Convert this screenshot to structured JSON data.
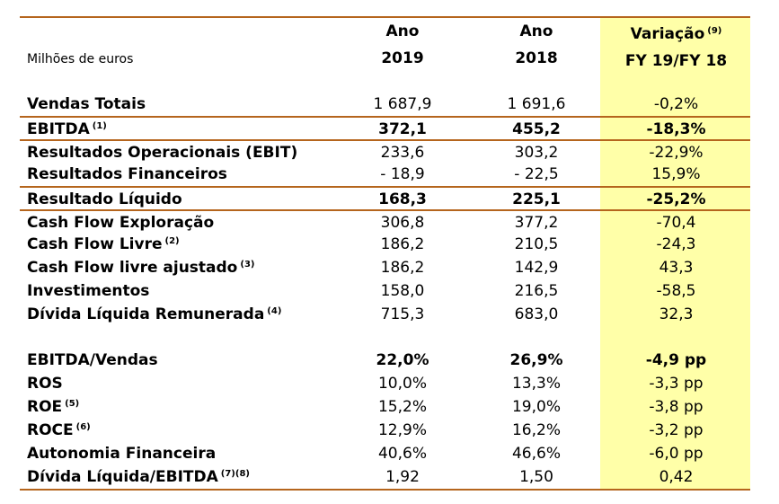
{
  "header": {
    "unit_label": "Milhões de euros",
    "col1_line1": "Ano",
    "col1_line2": "2019",
    "col2_line1": "Ano",
    "col2_line2": "2018",
    "col3_line1": "Variação",
    "col3_note": "(9)",
    "col3_line2": "FY 19/FY 18"
  },
  "rows": [
    {
      "label": "Vendas Totais",
      "note": "",
      "y2019": "1 687,9",
      "y2018": "1 691,6",
      "var": "-0,2%"
    },
    {
      "label": "EBITDA",
      "note": "(1)",
      "y2019": "372,1",
      "y2018": "455,2",
      "var": "-18,3%"
    },
    {
      "label": "Resultados Operacionais (EBIT)",
      "note": "",
      "y2019": "233,6",
      "y2018": "303,2",
      "var": "-22,9%"
    },
    {
      "label": "Resultados Financeiros",
      "note": "",
      "y2019": "- 18,9",
      "y2018": "- 22,5",
      "var": "15,9%"
    },
    {
      "label": "Resultado Líquido",
      "note": "",
      "y2019": "168,3",
      "y2018": "225,1",
      "var": "-25,2%"
    },
    {
      "label": "Cash Flow Exploração",
      "note": "",
      "y2019": "306,8",
      "y2018": "377,2",
      "var": "-70,4"
    },
    {
      "label": "Cash Flow Livre",
      "note": "(2)",
      "y2019": "186,2",
      "y2018": "210,5",
      "var": "-24,3"
    },
    {
      "label": "Cash Flow livre ajustado",
      "note": "(3)",
      "y2019": "186,2",
      "y2018": "142,9",
      "var": "43,3"
    },
    {
      "label": "Investimentos",
      "note": "",
      "y2019": "158,0",
      "y2018": "216,5",
      "var": "-58,5"
    },
    {
      "label": "Dívida Líquida Remunerada",
      "note": "(4)",
      "y2019": "715,3",
      "y2018": "683,0",
      "var": "32,3"
    },
    {
      "label": "EBITDA/Vendas",
      "note": "",
      "y2019": "22,0%",
      "y2018": "26,9%",
      "var": "-4,9 pp"
    },
    {
      "label": "ROS",
      "note": "",
      "y2019": "10,0%",
      "y2018": "13,3%",
      "var": "-3,3 pp"
    },
    {
      "label": "ROE",
      "note": "(5)",
      "y2019": "15,2%",
      "y2018": "19,0%",
      "var": "-3,8 pp"
    },
    {
      "label": "ROCE",
      "note": "(6)",
      "y2019": "12,9%",
      "y2018": "16,2%",
      "var": "-3,2 pp"
    },
    {
      "label": "Autonomia Financeira",
      "note": "",
      "y2019": "40,6%",
      "y2018": "46,6%",
      "var": "-6,0 pp"
    },
    {
      "label": "Dívida Líquida/EBITDA",
      "note": "(7)(8)",
      "y2019": "1,92",
      "y2018": "1,50",
      "var": "0,42"
    }
  ],
  "colors": {
    "rule": "#b5651d",
    "highlight": "#ffffa8"
  }
}
